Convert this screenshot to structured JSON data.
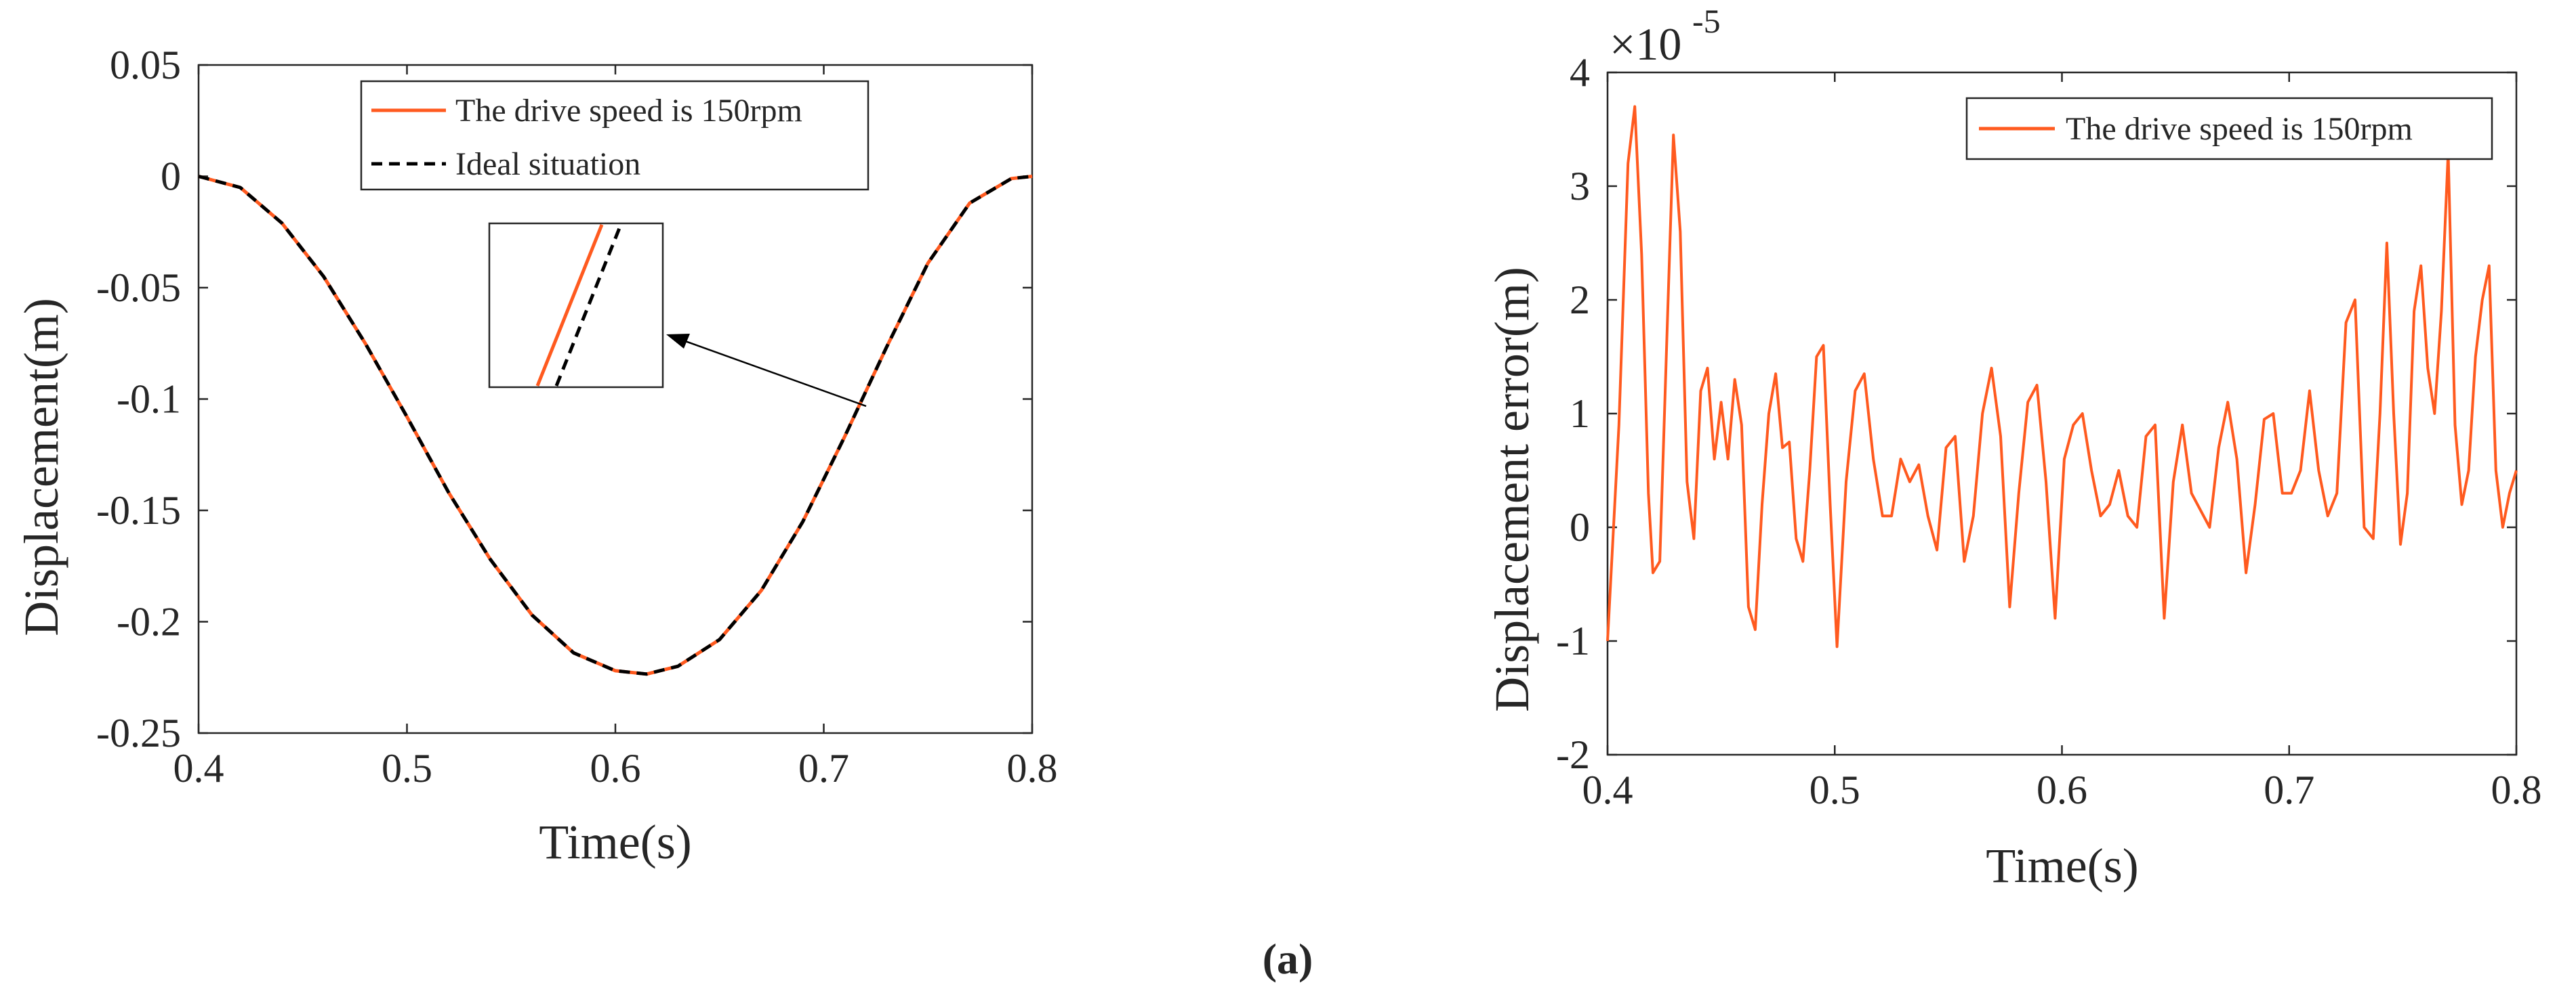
{
  "figure": {
    "caption": "(a)"
  },
  "chart_data": [
    {
      "type": "line",
      "title": "",
      "xlabel": "Time(s)",
      "ylabel": "Displacement(m)",
      "xlim": [
        0.4,
        0.8
      ],
      "ylim": [
        -0.25,
        0.05
      ],
      "xticks": [
        0.4,
        0.5,
        0.6,
        0.7,
        0.8
      ],
      "xtick_labels": [
        "0.4",
        "0.5",
        "0.6",
        "0.7",
        "0.8"
      ],
      "yticks": [
        0.05,
        0,
        -0.05,
        -0.1,
        -0.15,
        -0.2,
        -0.25
      ],
      "ytick_labels": [
        "0.05",
        "0",
        "-0.05",
        "-0.1",
        "-0.15",
        "-0.2",
        "-0.25"
      ],
      "legend": [
        "The drive speed is 150rpm",
        "Ideal situation"
      ],
      "colors": {
        "drive": "#ff5a1f",
        "ideal": "#000000"
      },
      "series": [
        {
          "name": "The drive speed is 150rpm",
          "style": "solid",
          "x": [
            0.4,
            0.42,
            0.44,
            0.46,
            0.48,
            0.5,
            0.52,
            0.54,
            0.56,
            0.58,
            0.6,
            0.615,
            0.63,
            0.65,
            0.67,
            0.69,
            0.71,
            0.73,
            0.75,
            0.77,
            0.79,
            0.8
          ],
          "y": [
            0.0,
            -0.005,
            -0.021,
            -0.045,
            -0.075,
            -0.108,
            -0.142,
            -0.172,
            -0.197,
            -0.214,
            -0.222,
            -0.2235,
            -0.22,
            -0.208,
            -0.186,
            -0.155,
            -0.117,
            -0.077,
            -0.039,
            -0.012,
            -0.001,
            0.0
          ]
        },
        {
          "name": "Ideal situation",
          "style": "dashed",
          "x": [
            0.4,
            0.42,
            0.44,
            0.46,
            0.48,
            0.5,
            0.52,
            0.54,
            0.56,
            0.58,
            0.6,
            0.615,
            0.63,
            0.65,
            0.67,
            0.69,
            0.71,
            0.73,
            0.75,
            0.77,
            0.79,
            0.8
          ],
          "y": [
            0.0,
            -0.005,
            -0.021,
            -0.045,
            -0.075,
            -0.108,
            -0.142,
            -0.172,
            -0.197,
            -0.214,
            -0.222,
            -0.2235,
            -0.22,
            -0.208,
            -0.186,
            -0.155,
            -0.117,
            -0.077,
            -0.039,
            -0.012,
            -0.001,
            0.0
          ]
        }
      ],
      "annotations": [
        {
          "type": "zoom-inset",
          "target_x": 0.72,
          "target_y": -0.103
        }
      ]
    },
    {
      "type": "line",
      "title": "",
      "xlabel": "Time(s)",
      "ylabel": "Displacement error(m)",
      "scale_label": "×10",
      "scale_exponent": "-5",
      "xlim": [
        0.4,
        0.8
      ],
      "ylim": [
        -2,
        4
      ],
      "xticks": [
        0.4,
        0.5,
        0.6,
        0.7,
        0.8
      ],
      "xtick_labels": [
        "0.4",
        "0.5",
        "0.6",
        "0.7",
        "0.8"
      ],
      "yticks": [
        4,
        3,
        2,
        1,
        0,
        -1,
        -2
      ],
      "ytick_labels": [
        "4",
        "3",
        "2",
        "1",
        "0",
        "-1",
        "-2"
      ],
      "legend": [
        "The drive speed is 150rpm"
      ],
      "colors": {
        "drive": "#ff5a1f"
      },
      "series": [
        {
          "name": "The drive speed is 150rpm",
          "x": [
            0.4,
            0.405,
            0.409,
            0.412,
            0.415,
            0.418,
            0.42,
            0.423,
            0.426,
            0.429,
            0.432,
            0.435,
            0.438,
            0.441,
            0.444,
            0.447,
            0.45,
            0.453,
            0.456,
            0.459,
            0.462,
            0.465,
            0.468,
            0.471,
            0.474,
            0.477,
            0.48,
            0.483,
            0.486,
            0.489,
            0.492,
            0.495,
            0.498,
            0.501,
            0.505,
            0.509,
            0.513,
            0.517,
            0.521,
            0.525,
            0.529,
            0.533,
            0.537,
            0.541,
            0.545,
            0.549,
            0.553,
            0.557,
            0.561,
            0.565,
            0.569,
            0.573,
            0.577,
            0.581,
            0.585,
            0.589,
            0.593,
            0.597,
            0.601,
            0.605,
            0.609,
            0.613,
            0.617,
            0.621,
            0.625,
            0.629,
            0.633,
            0.637,
            0.641,
            0.645,
            0.649,
            0.653,
            0.657,
            0.661,
            0.665,
            0.669,
            0.673,
            0.677,
            0.681,
            0.685,
            0.689,
            0.693,
            0.697,
            0.701,
            0.705,
            0.709,
            0.713,
            0.717,
            0.721,
            0.725,
            0.729,
            0.733,
            0.737,
            0.74,
            0.743,
            0.746,
            0.749,
            0.752,
            0.755,
            0.758,
            0.761,
            0.764,
            0.767,
            0.77,
            0.773,
            0.776,
            0.779,
            0.782,
            0.785,
            0.788,
            0.791,
            0.794,
            0.797,
            0.8
          ],
          "y": [
            -1.0,
            0.9,
            3.2,
            3.7,
            2.4,
            0.3,
            -0.4,
            -0.3,
            1.6,
            3.45,
            2.6,
            0.4,
            -0.1,
            1.2,
            1.4,
            0.6,
            1.1,
            0.6,
            1.3,
            0.9,
            -0.7,
            -0.9,
            0.2,
            1.0,
            1.35,
            0.7,
            0.75,
            -0.1,
            -0.3,
            0.5,
            1.5,
            1.6,
            0.2,
            -1.05,
            0.4,
            1.2,
            1.35,
            0.6,
            0.1,
            0.1,
            0.6,
            0.4,
            0.55,
            0.1,
            -0.2,
            0.7,
            0.8,
            -0.3,
            0.1,
            1.0,
            1.4,
            0.8,
            -0.7,
            0.3,
            1.1,
            1.25,
            0.4,
            -0.8,
            0.6,
            0.9,
            1.0,
            0.5,
            0.1,
            0.2,
            0.5,
            0.1,
            0.0,
            0.8,
            0.9,
            -0.8,
            0.4,
            0.9,
            0.3,
            0.15,
            0.0,
            0.7,
            1.1,
            0.6,
            -0.4,
            0.2,
            0.95,
            1.0,
            0.3,
            0.3,
            0.5,
            1.2,
            0.5,
            0.1,
            0.3,
            1.8,
            2.0,
            0.0,
            -0.1,
            1.0,
            2.5,
            1.0,
            -0.15,
            0.3,
            1.9,
            2.3,
            1.4,
            1.0,
            1.9,
            3.3,
            0.9,
            0.2,
            0.5,
            1.5,
            2.0,
            2.3,
            0.5,
            0.0,
            0.3,
            0.5
          ]
        }
      ]
    }
  ]
}
